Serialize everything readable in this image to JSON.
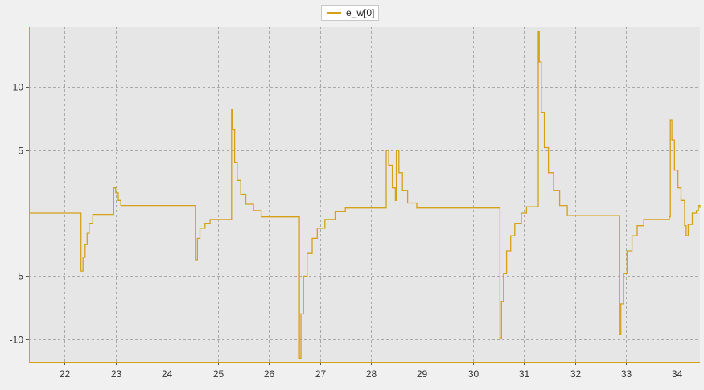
{
  "chart_data": {
    "type": "line",
    "title": "",
    "xlabel": "",
    "ylabel": "",
    "xlim": [
      21.3,
      34.45
    ],
    "ylim": [
      -11.8,
      14.8
    ],
    "xticks": [
      "22",
      "23",
      "24",
      "25",
      "26",
      "27",
      "28",
      "29",
      "30",
      "31",
      "32",
      "33",
      "34"
    ],
    "yticks": [
      "-10",
      "-5",
      "5",
      "10"
    ],
    "grid": true,
    "legend_position": "top-center",
    "background": "#e6e6e6",
    "series": [
      {
        "name": "e_w[0]",
        "color": "#d4a017",
        "points": [
          [
            21.3,
            0.0
          ],
          [
            22.3,
            0.0
          ],
          [
            22.32,
            -4.6
          ],
          [
            22.36,
            -3.5
          ],
          [
            22.4,
            -2.5
          ],
          [
            22.44,
            -1.6
          ],
          [
            22.48,
            -0.8
          ],
          [
            22.55,
            -0.1
          ],
          [
            22.95,
            -0.1
          ],
          [
            22.96,
            2.0
          ],
          [
            23.0,
            1.6
          ],
          [
            23.05,
            1.0
          ],
          [
            23.1,
            0.6
          ],
          [
            24.55,
            0.6
          ],
          [
            24.56,
            -3.7
          ],
          [
            24.6,
            -2.0
          ],
          [
            24.65,
            -1.2
          ],
          [
            24.75,
            -0.8
          ],
          [
            24.85,
            -0.5
          ],
          [
            25.25,
            -0.5
          ],
          [
            25.27,
            8.2
          ],
          [
            25.29,
            6.6
          ],
          [
            25.33,
            4.0
          ],
          [
            25.38,
            2.6
          ],
          [
            25.45,
            1.5
          ],
          [
            25.55,
            0.7
          ],
          [
            25.7,
            0.2
          ],
          [
            25.85,
            -0.3
          ],
          [
            26.55,
            -0.3
          ],
          [
            26.6,
            -11.5
          ],
          [
            26.63,
            -8.0
          ],
          [
            26.68,
            -5.0
          ],
          [
            26.75,
            -3.2
          ],
          [
            26.85,
            -2.0
          ],
          [
            26.95,
            -1.2
          ],
          [
            27.1,
            -0.5
          ],
          [
            27.3,
            0.1
          ],
          [
            27.5,
            0.4
          ],
          [
            28.27,
            0.4
          ],
          [
            28.3,
            5.0
          ],
          [
            28.35,
            3.8
          ],
          [
            28.42,
            2.0
          ],
          [
            28.48,
            1.0
          ],
          [
            28.5,
            5.0
          ],
          [
            28.55,
            3.2
          ],
          [
            28.62,
            1.8
          ],
          [
            28.72,
            0.8
          ],
          [
            28.9,
            0.4
          ],
          [
            30.5,
            0.4
          ],
          [
            30.53,
            -9.9
          ],
          [
            30.56,
            -7.0
          ],
          [
            30.6,
            -4.8
          ],
          [
            30.66,
            -3.0
          ],
          [
            30.74,
            -1.8
          ],
          [
            30.82,
            -0.8
          ],
          [
            30.95,
            0.0
          ],
          [
            31.05,
            0.5
          ],
          [
            31.27,
            0.5
          ],
          [
            31.28,
            14.4
          ],
          [
            31.3,
            12.0
          ],
          [
            31.34,
            8.0
          ],
          [
            31.4,
            5.2
          ],
          [
            31.48,
            3.2
          ],
          [
            31.58,
            1.8
          ],
          [
            31.7,
            0.6
          ],
          [
            31.85,
            -0.2
          ],
          [
            32.85,
            -0.2
          ],
          [
            32.87,
            -9.6
          ],
          [
            32.9,
            -7.2
          ],
          [
            32.95,
            -4.8
          ],
          [
            33.02,
            -3.0
          ],
          [
            33.12,
            -1.8
          ],
          [
            33.22,
            -1.0
          ],
          [
            33.35,
            -0.5
          ],
          [
            33.85,
            -0.3
          ],
          [
            33.87,
            7.4
          ],
          [
            33.9,
            5.8
          ],
          [
            33.95,
            3.4
          ],
          [
            34.02,
            2.0
          ],
          [
            34.08,
            1.0
          ],
          [
            34.15,
            -1.0
          ],
          [
            34.18,
            -1.8
          ],
          [
            34.22,
            -0.9
          ],
          [
            34.3,
            0.0
          ],
          [
            34.38,
            0.2
          ],
          [
            34.42,
            0.6
          ],
          [
            34.45,
            0.4
          ]
        ]
      }
    ]
  }
}
